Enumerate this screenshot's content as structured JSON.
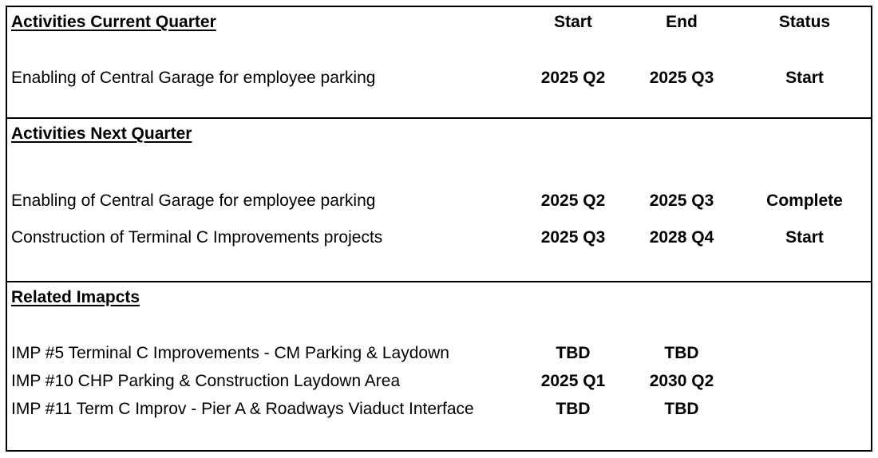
{
  "columns": {
    "start": "Start",
    "end": "End",
    "status": "Status"
  },
  "sections": [
    {
      "heading": "Activities Current Quarter",
      "rows": [
        {
          "description": "Enabling of Central Garage for employee parking",
          "start": "2025 Q2",
          "end": "2025 Q3",
          "status": "Start"
        }
      ]
    },
    {
      "heading": "Activities Next Quarter",
      "rows": [
        {
          "description": "Enabling of Central Garage for employee parking",
          "start": "2025 Q2",
          "end": "2025 Q3",
          "status": "Complete"
        },
        {
          "description": "Construction of Terminal C Improvements projects",
          "start": "2025 Q3",
          "end": "2028 Q4",
          "status": "Start"
        }
      ]
    },
    {
      "heading": "Related Imapcts",
      "rows": [
        {
          "description": "IMP #5 Terminal C Improvements  - CM Parking & Laydown",
          "start": "TBD",
          "end": "TBD",
          "status": ""
        },
        {
          "description": "IMP #10 CHP Parking & Construction Laydown Area",
          "start": "2025 Q1",
          "end": "2030 Q2",
          "status": ""
        },
        {
          "description": "IMP #11 Term C Improv - Pier A & Roadways Viaduct Interface",
          "start": "TBD",
          "end": "TBD",
          "status": ""
        }
      ]
    }
  ]
}
